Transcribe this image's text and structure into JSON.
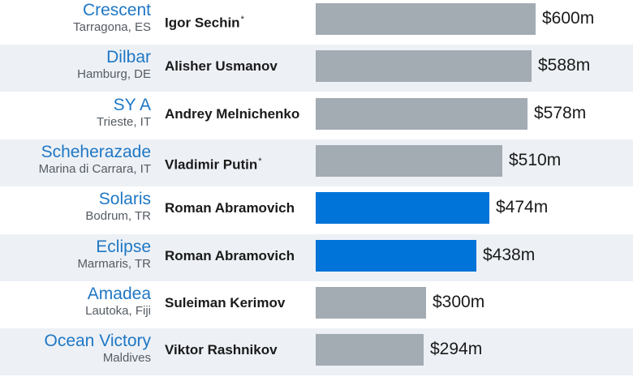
{
  "chart_data": {
    "type": "bar",
    "orientation": "horizontal",
    "colors": {
      "highlight": "#0074d9",
      "default": "#a3abb3",
      "name_text": "#1f77c4"
    },
    "rows": [
      {
        "yacht": "Crescent",
        "location": "Tarragona, ES",
        "owner": "Igor Sechin",
        "owner_mark": "*",
        "value": 600,
        "value_label": "$600m",
        "highlight": false
      },
      {
        "yacht": "Dilbar",
        "location": "Hamburg, DE",
        "owner": "Alisher Usmanov",
        "owner_mark": "",
        "value": 588,
        "value_label": "$588m",
        "highlight": false
      },
      {
        "yacht": "SY A",
        "location": "Trieste, IT",
        "owner": "Andrey Melnichenko",
        "owner_mark": "",
        "value": 578,
        "value_label": "$578m",
        "highlight": false
      },
      {
        "yacht": "Scheherazade",
        "location": "Marina di Carrara, IT",
        "owner": "Vladimir Putin",
        "owner_mark": "*",
        "value": 510,
        "value_label": "$510m",
        "highlight": false
      },
      {
        "yacht": "Solaris",
        "location": "Bodrum, TR",
        "owner": "Roman Abramovich",
        "owner_mark": "",
        "value": 474,
        "value_label": "$474m",
        "highlight": true
      },
      {
        "yacht": "Eclipse",
        "location": "Marmaris, TR",
        "owner": "Roman Abramovich",
        "owner_mark": "",
        "value": 438,
        "value_label": "$438m",
        "highlight": true
      },
      {
        "yacht": "Amadea",
        "location": "Lautoka, Fiji",
        "owner": "Suleiman Kerimov",
        "owner_mark": "",
        "value": 300,
        "value_label": "$300m",
        "highlight": false
      },
      {
        "yacht": "Ocean Victory",
        "location": "Maldives",
        "owner": "Viktor Rashnikov",
        "owner_mark": "",
        "value": 294,
        "value_label": "$294m",
        "highlight": false
      }
    ],
    "xlim": [
      0,
      600
    ]
  }
}
